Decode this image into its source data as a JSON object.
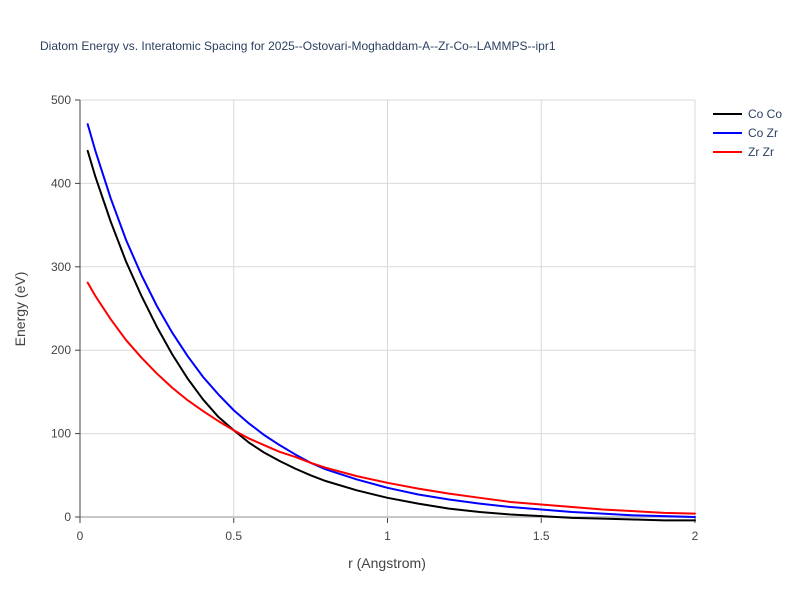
{
  "chart_data": {
    "type": "line",
    "title": "Diatom Energy vs. Interatomic Spacing for 2025--Ostovari-Moghaddam-A--Zr-Co--LAMMPS--ipr1",
    "xlabel": "r (Angstrom)",
    "ylabel": "Energy (eV)",
    "xlim": [
      0,
      2
    ],
    "ylim": [
      0,
      500
    ],
    "xticks": [
      0,
      0.5,
      1,
      1.5,
      2
    ],
    "xtick_labels": [
      "0",
      "0.5",
      "1",
      "1.5",
      "2"
    ],
    "yticks": [
      0,
      100,
      200,
      300,
      400,
      500
    ],
    "ytick_labels": [
      "0",
      "100",
      "200",
      "300",
      "400",
      "500"
    ],
    "grid": true,
    "legend_position": "top-right",
    "x": [
      0.025,
      0.05,
      0.1,
      0.15,
      0.2,
      0.25,
      0.3,
      0.35,
      0.4,
      0.45,
      0.5,
      0.55,
      0.6,
      0.65,
      0.7,
      0.75,
      0.8,
      0.9,
      1.0,
      1.1,
      1.2,
      1.3,
      1.4,
      1.5,
      1.6,
      1.7,
      1.8,
      1.9,
      2.0
    ],
    "series": [
      {
        "name": "Co Co",
        "color": "#000000",
        "values": [
          439,
          408,
          354,
          306,
          265,
          228,
          195,
          166,
          141,
          120,
          104,
          89,
          77,
          67,
          58,
          50,
          43,
          32,
          23,
          16,
          10,
          6,
          3,
          1,
          -1,
          -2,
          -3,
          -4,
          -4
        ]
      },
      {
        "name": "Co Zr",
        "color": "#0000ff",
        "values": [
          471,
          439,
          382,
          332,
          290,
          253,
          221,
          193,
          168,
          147,
          128,
          112,
          98,
          86,
          75,
          65,
          57,
          45,
          35,
          27,
          21,
          16,
          12,
          9,
          6,
          4,
          2,
          1,
          0
        ]
      },
      {
        "name": "Zr Zr",
        "color": "#ff0000",
        "values": [
          281,
          265,
          237,
          212,
          191,
          172,
          155,
          140,
          127,
          115,
          104,
          94,
          86,
          78,
          72,
          65,
          59,
          49,
          41,
          34,
          28,
          23,
          18,
          15,
          12,
          9,
          7,
          5,
          4
        ]
      }
    ]
  },
  "colors": {
    "grid": "#d9d9d9",
    "axis": "#444444",
    "title": "#2a3f5f",
    "zero_line": "#c8c8c8"
  }
}
